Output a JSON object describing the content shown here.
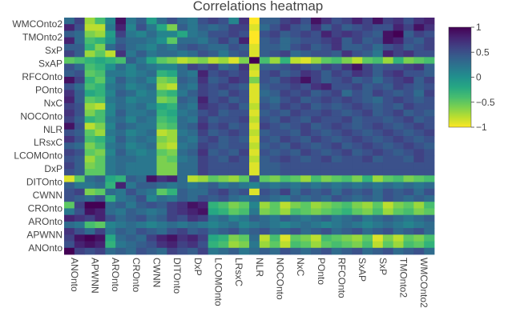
{
  "chart_data": {
    "type": "heatmap",
    "title": "Correlations heatmap",
    "colorscale": "viridis",
    "zmin": -1,
    "zmax": 1,
    "colorbar_ticks": [
      "1",
      "0.5",
      "0",
      "−0.5",
      "−1"
    ],
    "colorbar_values": [
      1,
      0.5,
      0,
      -0.5,
      -1
    ],
    "x_labels": [
      "ANOnto",
      "APWNN",
      "AROnto",
      "CROnto",
      "CWNN",
      "DITOnto",
      "DxP",
      "LCOMOnto",
      "LRsxC",
      "NLR",
      "NOCOnto",
      "NxC",
      "POnto",
      "RFCOnto",
      "SxAP",
      "SxP",
      "TMOnto2",
      "WMCOnto2"
    ],
    "y_labels": [
      "WMCOnto2",
      "TMOnto2",
      "SxP",
      "SxAP",
      "RFCOnto",
      "POnto",
      "NxC",
      "NOCOnto",
      "NLR",
      "LRsxC",
      "LCOMOnto",
      "DxP",
      "DITOnto",
      "CWNN",
      "CROnto",
      "AROnto",
      "APWNN",
      "ANOnto"
    ],
    "columns_per_label": 2,
    "rows_per_label": 2,
    "values": [
      [
        0.3,
        0.6,
        -0.7,
        -0.4,
        0.1,
        0.9,
        0.2,
        0.4,
        -0.1,
        0.3,
        0.5,
        0.3,
        0.2,
        0.5,
        0.6,
        0.5,
        0.1,
        0.7,
        -1,
        0.4,
        0.4,
        0.6,
        0.7,
        0.5,
        0.9,
        0.7,
        0.5,
        0.6,
        0.8,
        0.6,
        0.9,
        0.6,
        0.7,
        0.5,
        0.7,
        0.8
      ],
      [
        0.8,
        0.5,
        -0.8,
        -0.8,
        0.2,
        0.8,
        0.1,
        0.5,
        0.2,
        -0.2,
        -0.6,
        0.4,
        0.2,
        0.4,
        0.3,
        0.4,
        0.6,
        0.6,
        -0.9,
        0.3,
        0.5,
        0.7,
        0.5,
        0.4,
        0.7,
        0.4,
        0.6,
        0.4,
        0.5,
        0.6,
        0.5,
        0.5,
        0.8,
        0.6,
        0.9,
        0.7
      ],
      [
        0.4,
        0.3,
        -0.6,
        -0.7,
        -0.1,
        0.6,
        0.2,
        0.1,
        0.3,
        0.1,
        0.1,
        -0.2,
        0.2,
        0.3,
        0.5,
        0.5,
        0.6,
        0.5,
        -1,
        0.5,
        0.6,
        0.4,
        0.5,
        0.6,
        0.5,
        0.8,
        0.6,
        0.7,
        0.6,
        0.5,
        0.4,
        0.9,
        1,
        0.4,
        0.6,
        0.5
      ],
      [
        0.8,
        0.3,
        -0.4,
        -0.3,
        0,
        0.4,
        0.3,
        0.3,
        0.2,
        0,
        -0.5,
        0.3,
        0.3,
        0.2,
        0.4,
        0.6,
        0.4,
        0.8,
        -1,
        0.4,
        0.5,
        0.3,
        0.4,
        0.5,
        0.5,
        0.6,
        0.7,
        0.4,
        0.6,
        0.4,
        0.5,
        0.9,
        0.8,
        0.5,
        0.4,
        0.6
      ],
      [
        0.4,
        0.4,
        -0.3,
        -0.6,
        0.3,
        0.5,
        0.3,
        0.2,
        0.1,
        0.3,
        0.2,
        0.4,
        0.5,
        0.4,
        0.3,
        0.3,
        0.5,
        0.4,
        -0.9,
        0.4,
        0.4,
        0.3,
        0.5,
        0.6,
        0.4,
        0.5,
        0.7,
        0.4,
        0.4,
        0.5,
        0.3,
        0.5,
        0.6,
        0.4,
        0.5,
        0.6
      ],
      [
        0.6,
        0.4,
        -0.7,
        -0.5,
        -0.8,
        0.7,
        0.2,
        0.4,
        0.2,
        0.3,
        0.3,
        0.2,
        0.3,
        0.5,
        0.4,
        0.2,
        0.4,
        0.5,
        -0.9,
        0.4,
        0.5,
        0.6,
        0.3,
        0.4,
        0.5,
        0.5,
        0.4,
        0.7,
        0.5,
        0.4,
        0.2,
        0.8,
        0.6,
        0.7,
        0.5,
        0.5
      ],
      [
        -0.5,
        -0.4,
        -0.3,
        -0.2,
        -0.3,
        -0.4,
        0.4,
        0.2,
        -0.2,
        -0.5,
        -0.6,
        -0.8,
        -0.7,
        -0.6,
        -0.8,
        -0.7,
        -0.9,
        -0.6,
        1,
        -0.4,
        -0.7,
        -0.3,
        -0.8,
        -0.9,
        -0.7,
        -0.5,
        -0.4,
        -0.6,
        -0.8,
        -0.5,
        -0.4,
        -0.7,
        -0.3,
        -0.6,
        -0.5,
        -0.4
      ],
      [
        0.5,
        0.3,
        -0.4,
        -0.3,
        0,
        0.3,
        0.1,
        0.3,
        0.2,
        0.1,
        0.1,
        0.3,
        0.6,
        0.5,
        0.6,
        0.3,
        0.4,
        0.7,
        -0.8,
        0.4,
        0.4,
        0.5,
        0.6,
        0.5,
        0.4,
        0.6,
        0.5,
        0.7,
        0.9,
        0.6,
        0.4,
        0.5,
        0.5,
        0.6,
        0.7,
        0.4
      ],
      [
        0.4,
        0.5,
        -0.5,
        -0.4,
        0.2,
        0.2,
        0.1,
        0.2,
        0.3,
        -0.3,
        -0.2,
        0.3,
        0.2,
        0.8,
        0.5,
        0.6,
        0.5,
        0.6,
        -0.9,
        0.5,
        0.6,
        0.4,
        0.5,
        0.7,
        0.6,
        0.4,
        0.6,
        0.5,
        0.7,
        0.6,
        0.4,
        0.6,
        0.7,
        0.5,
        0.5,
        0.4
      ],
      [
        0.9,
        0.6,
        -0.3,
        -0.5,
        0.1,
        0.4,
        0.2,
        0.3,
        0.1,
        -0.6,
        -0.5,
        0.4,
        0.3,
        0.7,
        0.4,
        0.5,
        0.7,
        0.6,
        -0.6,
        0.5,
        0.4,
        0.6,
        0.7,
        0.9,
        0.6,
        0.4,
        0.5,
        0.6,
        0.4,
        0.5,
        0.3,
        0.5,
        0.6,
        0.7,
        0.4,
        0.6
      ],
      [
        0.5,
        0.3,
        -0.4,
        -0.3,
        0.2,
        0.3,
        0.1,
        0.2,
        0.3,
        -0.7,
        -0.8,
        0.3,
        0.2,
        0.6,
        0.5,
        0.6,
        0.5,
        0.4,
        -0.9,
        0.4,
        0.5,
        0.5,
        0.6,
        0.5,
        0.7,
        0.8,
        0.5,
        0.5,
        0.6,
        0.4,
        0.5,
        0.4,
        0.6,
        0.5,
        0.4,
        0.5
      ],
      [
        0.7,
        0.4,
        -0.2,
        -0.3,
        0.1,
        0.4,
        0.3,
        0.1,
        0.2,
        -0.4,
        -0.3,
        0.2,
        0.4,
        0.6,
        0.5,
        0.4,
        0.6,
        0.5,
        -0.9,
        0.3,
        0.4,
        0.6,
        0.5,
        0.6,
        0.4,
        0.5,
        0.6,
        0.3,
        0.5,
        0.4,
        0.6,
        0.5,
        0.4,
        0.5,
        0.3,
        0.6
      ],
      [
        0.8,
        0.4,
        -0.5,
        -0.4,
        0.2,
        0.3,
        0.1,
        0.2,
        0.2,
        -0.6,
        -0.5,
        0.4,
        0.3,
        0.8,
        0.5,
        0.6,
        0.4,
        0.5,
        -0.9,
        0.4,
        0.3,
        0.5,
        0.6,
        0.4,
        0.5,
        0.6,
        0.5,
        0.6,
        0.5,
        0.4,
        0.3,
        0.5,
        0.6,
        0.5,
        0.4,
        0.5
      ],
      [
        0.6,
        0.5,
        -0.7,
        -0.8,
        0.1,
        0.3,
        0.2,
        0.3,
        0.1,
        -0.2,
        -0.3,
        0.3,
        0.2,
        0.7,
        0.6,
        0.5,
        0.6,
        0.4,
        -0.8,
        0.5,
        0.4,
        0.6,
        0.5,
        0.6,
        0.4,
        0.5,
        0.4,
        0.5,
        0.6,
        0.5,
        0.4,
        0.5,
        0.4,
        0.6,
        0.5,
        0.5
      ],
      [
        0.7,
        0.5,
        -0.6,
        -0.4,
        0.1,
        0.4,
        0.2,
        0.2,
        0.3,
        -0.3,
        -0.2,
        0.2,
        0.3,
        0.5,
        0.6,
        0.4,
        0.5,
        0.5,
        -0.9,
        0.4,
        0.5,
        0.4,
        0.6,
        0.5,
        0.5,
        0.6,
        0.5,
        0.4,
        0.5,
        0.6,
        0.4,
        0.5,
        0.6,
        0.4,
        0.5,
        0.4
      ],
      [
        0.6,
        0.4,
        -0.3,
        -0.4,
        0.2,
        0.3,
        0.1,
        0.3,
        0.2,
        -0.4,
        -0.3,
        0.3,
        0.2,
        0.6,
        0.4,
        0.5,
        0.5,
        0.6,
        -0.8,
        0.5,
        0.4,
        0.6,
        0.5,
        0.4,
        0.6,
        0.5,
        0.5,
        0.6,
        0.4,
        0.5,
        0.5,
        0.4,
        0.5,
        0.6,
        0.4,
        0.5
      ],
      [
        0.9,
        0.5,
        -0.8,
        -0.6,
        0.1,
        0.4,
        0.3,
        0.2,
        0.2,
        -0.5,
        -0.4,
        0.3,
        0.4,
        0.7,
        0.5,
        0.6,
        0.4,
        0.5,
        -0.9,
        0.6,
        0.5,
        0.4,
        0.5,
        0.6,
        0.4,
        0.5,
        0.6,
        0.5,
        0.4,
        0.5,
        0.6,
        0.5,
        0.4,
        0.5,
        0.6,
        0.5
      ],
      [
        0.5,
        0.4,
        -0.5,
        -0.7,
        0.2,
        0.3,
        0.1,
        0.2,
        0.3,
        -0.8,
        -0.7,
        0.2,
        0.3,
        0.6,
        0.4,
        0.5,
        0.6,
        0.5,
        -0.8,
        0.4,
        0.5,
        0.5,
        0.4,
        0.6,
        0.5,
        0.4,
        0.5,
        0.6,
        0.5,
        0.4,
        0.5,
        0.6,
        0.5,
        0.4,
        0.5,
        0.6
      ],
      [
        0.7,
        0.5,
        -0.4,
        -0.3,
        0.1,
        0.4,
        0.2,
        0.3,
        0.2,
        -0.6,
        -0.7,
        0.3,
        0.2,
        0.5,
        0.6,
        0.4,
        0.5,
        0.4,
        -0.9,
        0.5,
        0.4,
        0.6,
        0.5,
        0.4,
        0.6,
        0.5,
        0.4,
        0.5,
        0.6,
        0.5,
        0.4,
        0.5,
        0.6,
        0.5,
        0.4,
        0.5
      ],
      [
        0.4,
        0.3,
        -0.6,
        -0.4,
        0.2,
        0.3,
        0.1,
        0.2,
        0.3,
        -0.7,
        -0.8,
        0.2,
        0.3,
        0.6,
        0.5,
        0.4,
        0.5,
        0.5,
        -0.8,
        0.4,
        0.5,
        0.4,
        0.6,
        0.5,
        0.4,
        0.5,
        0.6,
        0.4,
        0.5,
        0.6,
        0.5,
        0.4,
        0.5,
        0.6,
        0.5,
        0.4
      ],
      [
        0.6,
        0.5,
        -0.5,
        -0.6,
        0.1,
        0.4,
        0.2,
        0.1,
        0.2,
        -0.5,
        -0.6,
        0.3,
        0.4,
        0.7,
        0.4,
        0.5,
        0.4,
        0.6,
        -0.9,
        0.5,
        0.4,
        0.5,
        0.4,
        0.6,
        0.5,
        0.4,
        0.5,
        0.6,
        0.4,
        0.5,
        0.6,
        0.5,
        0.4,
        0.5,
        0.6,
        0.5
      ],
      [
        0.5,
        0.4,
        -0.7,
        -0.5,
        0.2,
        0.3,
        0.3,
        0.2,
        0.2,
        -0.6,
        -0.5,
        0.2,
        0.3,
        0.6,
        0.5,
        0.4,
        0.6,
        0.5,
        -0.8,
        0.4,
        0.5,
        0.6,
        0.5,
        0.4,
        0.5,
        0.6,
        0.4,
        0.5,
        0.5,
        0.6,
        0.4,
        0.5,
        0.5,
        0.4,
        0.6,
        0.5
      ],
      [
        0.6,
        0.4,
        -0.6,
        -0.5,
        0.2,
        0.3,
        0.2,
        0.2,
        0.2,
        -0.6,
        -0.6,
        0.3,
        0.3,
        0.6,
        0.5,
        0.5,
        0.5,
        0.5,
        -0.9,
        0.4,
        0.4,
        0.5,
        0.5,
        0.5,
        0.5,
        0.5,
        0.5,
        0.5,
        0.5,
        0.5,
        0.5,
        0.5,
        0.5,
        0.5,
        0.5,
        0.5
      ],
      [
        0.5,
        0.4,
        -0.5,
        -0.5,
        0.2,
        0.3,
        0.2,
        0.2,
        0.2,
        -0.6,
        -0.6,
        0.3,
        0.3,
        0.6,
        0.5,
        0.5,
        0.5,
        0.5,
        -0.9,
        0.4,
        0.4,
        0.5,
        0.5,
        0.5,
        0.5,
        0.5,
        0.5,
        0.5,
        0.5,
        0.5,
        0.5,
        0.5,
        0.5,
        0.5,
        0.5,
        0.5
      ],
      [
        -0.9,
        -0.5,
        0.3,
        0.4,
        -0.2,
        -0.3,
        0.4,
        0.3,
        0.9,
        0.7,
        0.8,
        0.3,
        -0.8,
        -0.7,
        -0.5,
        -0.6,
        -0.7,
        -0.5,
        0.5,
        -0.5,
        -0.6,
        -0.4,
        -0.5,
        -0.7,
        -0.4,
        -0.6,
        -0.5,
        -0.4,
        -0.6,
        -0.3,
        -0.7,
        -0.5,
        -0.4,
        -0.6,
        -0.5,
        -0.4
      ],
      [
        0.4,
        0.2,
        0.2,
        0.3,
        -0.3,
        0.8,
        0.2,
        0.4,
        0.4,
        0.3,
        0.2,
        0.3,
        0.2,
        0.3,
        0.4,
        0.2,
        0.3,
        0.2,
        0.1,
        0.3,
        0.2,
        0.3,
        0.2,
        0.3,
        0.2,
        0.3,
        0.2,
        0.3,
        0.2,
        0.3,
        0.2,
        0.3,
        0.2,
        0.3,
        0.2,
        0.3
      ],
      [
        0.5,
        0.6,
        -0.6,
        -0.5,
        0.3,
        0.2,
        0.5,
        0.3,
        0.2,
        -0.5,
        -0.3,
        0.4,
        0.3,
        0.3,
        0.5,
        0.6,
        0.4,
        0.5,
        -0.9,
        0.5,
        0.4,
        0.6,
        0.3,
        0.5,
        0.4,
        0.5,
        0.3,
        0.5,
        0.4,
        0.5,
        0.3,
        0.5,
        0.4,
        0.5,
        0.3,
        0.5
      ],
      [
        0.5,
        0.4,
        0.3,
        0.5,
        -0.3,
        0.2,
        0.3,
        0.5,
        0.1,
        0.3,
        0.2,
        0.4,
        0.3,
        0.5,
        0.4,
        0.5,
        0.3,
        0.2,
        0.3,
        0.4,
        0.3,
        0.2,
        0.4,
        0.3,
        0.4,
        0.3,
        0.5,
        0.4,
        0.3,
        0.4,
        0.3,
        0.5,
        0.4,
        0.3,
        0.4,
        0.3
      ],
      [
        -0.5,
        0.6,
        1,
        1,
        0.3,
        0.4,
        0.2,
        0.4,
        0.5,
        0.4,
        0.6,
        0.7,
        0.9,
        0.8,
        -0.3,
        -0.4,
        -0.6,
        -0.5,
        0.1,
        -0.7,
        -0.5,
        -0.8,
        -0.6,
        -0.5,
        -0.7,
        -0.6,
        -0.5,
        -0.4,
        -0.6,
        -0.7,
        -0.5,
        -0.8,
        -0.6,
        -0.5,
        -0.7,
        -0.4
      ],
      [
        0.2,
        0.5,
        0.9,
        0.8,
        0.3,
        0.2,
        0.4,
        0.3,
        0.2,
        0.3,
        0.6,
        0.7,
        0.8,
        0.9,
        -0.2,
        -0.3,
        -0.5,
        -0.4,
        0.2,
        -0.6,
        -0.5,
        -0.7,
        -0.4,
        -0.5,
        -0.6,
        -0.5,
        -0.4,
        -0.3,
        -0.5,
        -0.6,
        -0.4,
        -0.7,
        -0.5,
        -0.4,
        -0.6,
        -0.5
      ],
      [
        0.8,
        0.7,
        0.6,
        0.8,
        0.5,
        0.3,
        0.4,
        0.5,
        0.3,
        0.4,
        0.6,
        0.5,
        0.7,
        0.6,
        0.2,
        0.3,
        0.1,
        0.2,
        0.4,
        0.3,
        0.2,
        0.4,
        0.3,
        0.2,
        0.3,
        0.4,
        0.2,
        0.3,
        0.4,
        0.2,
        0.3,
        0.4,
        0.3,
        0.2,
        0.3,
        0.4
      ],
      [
        0.3,
        0.2,
        -0.4,
        -0.5,
        0.1,
        0.2,
        0.3,
        0.2,
        0.1,
        0.2,
        0.3,
        0.2,
        0.3,
        0.2,
        0.1,
        0.2,
        0.3,
        0.1,
        0.2,
        0.3,
        0.2,
        0.1,
        0.2,
        0.3,
        0.2,
        0.1,
        0.2,
        0.3,
        0.2,
        0.1,
        0.2,
        0.3,
        0.2,
        0.1,
        0.2,
        0.3
      ],
      [
        0.7,
        0.5,
        0.3,
        0.6,
        0.2,
        0.4,
        0.3,
        0.5,
        0.4,
        0.3,
        0.5,
        0.6,
        0.4,
        0.5,
        0.3,
        0.4,
        0.5,
        0.3,
        0.4,
        0.5,
        0.3,
        0.4,
        0.5,
        0.3,
        0.4,
        0.5,
        0.3,
        0.4,
        0.5,
        0.3,
        0.4,
        0.5,
        0.3,
        0.4,
        0.5,
        0.3
      ],
      [
        0.6,
        0.9,
        1,
        0.9,
        -0.2,
        0.3,
        0.4,
        0.3,
        0.6,
        0.8,
        0.9,
        0.7,
        0.8,
        0.6,
        -0.2,
        -0.3,
        -0.6,
        -0.5,
        0.3,
        -0.8,
        -0.4,
        -0.9,
        -0.5,
        -0.6,
        -0.8,
        -0.4,
        -0.5,
        -0.6,
        -0.7,
        -0.5,
        -0.9,
        -0.6,
        -0.8,
        -0.5,
        -0.6,
        -0.4
      ],
      [
        0.5,
        0.8,
        0.9,
        0.8,
        -0.3,
        0.2,
        0.3,
        0.4,
        0.5,
        0.7,
        0.8,
        0.6,
        0.7,
        0.5,
        -0.3,
        -0.4,
        -0.7,
        -0.6,
        0.2,
        -0.7,
        -0.5,
        -0.8,
        -0.4,
        -0.5,
        -0.7,
        -0.5,
        -0.4,
        -0.5,
        -0.6,
        -0.4,
        -0.8,
        -0.5,
        -0.7,
        -0.4,
        -0.5,
        -0.3
      ],
      [
        1,
        0.6,
        0.5,
        0.6,
        0.3,
        0.4,
        0.3,
        0.5,
        0.4,
        0.3,
        0.6,
        0.5,
        0.4,
        0.6,
        0.2,
        0.3,
        0.4,
        0.2,
        0.3,
        0.4,
        0.3,
        0.5,
        0.4,
        0.3,
        0.4,
        0.5,
        0.3,
        0.4,
        0.5,
        0.3,
        0.4,
        0.5,
        0.3,
        0.4,
        0.5,
        0.3
      ]
    ]
  }
}
